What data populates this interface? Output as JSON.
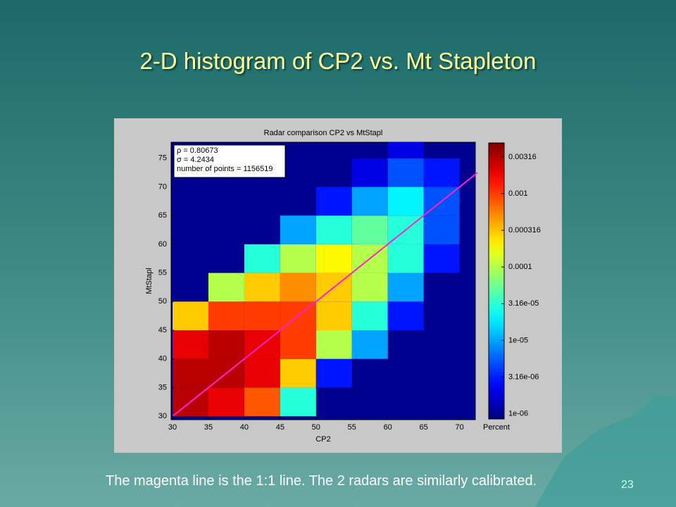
{
  "slide_title": "2-D histogram of CP2 vs. Mt Stapleton",
  "caption": "The magenta line is the 1:1 line. The 2 radars are similarly calibrated.",
  "page_number": "23",
  "chart_data": {
    "type": "heatmap",
    "title": "Radar comparison CP2 vs MtStapl",
    "xlabel": "CP2",
    "ylabel": "MtStapl",
    "annotations": [
      "ρ = 0.80673",
      "σ = 4.2434",
      "number of points = 1156519"
    ],
    "xlim": [
      29.8,
      72.2
    ],
    "ylim": [
      29.4,
      77.8
    ],
    "xticks": [
      30,
      35,
      40,
      45,
      50,
      55,
      60,
      65,
      70
    ],
    "yticks": [
      30,
      35,
      40,
      45,
      50,
      55,
      60,
      65,
      70,
      75
    ],
    "x_bins": [
      30,
      35,
      40,
      45,
      50,
      55,
      60,
      65,
      70
    ],
    "y_bins": [
      30,
      35,
      40,
      45,
      50,
      55,
      60,
      65,
      70,
      75,
      80
    ],
    "values": [
      [
        0.003,
        0.002,
        0.0008,
        3e-05,
        null,
        null,
        null,
        null
      ],
      [
        0.003,
        0.003,
        0.002,
        0.0003,
        3e-06,
        null,
        null,
        null
      ],
      [
        0.002,
        0.003,
        0.002,
        0.001,
        0.0001,
        1e-05,
        null,
        null
      ],
      [
        0.0003,
        0.001,
        0.001,
        0.001,
        0.0003,
        3e-05,
        3e-06,
        null
      ],
      [
        null,
        0.0001,
        0.0003,
        0.0005,
        0.0003,
        0.0001,
        1e-05,
        null
      ],
      [
        null,
        null,
        3e-05,
        0.0001,
        0.0002,
        0.0001,
        3e-05,
        3e-06
      ],
      [
        null,
        null,
        null,
        1e-05,
        3e-05,
        5e-05,
        3e-05,
        5e-06
      ],
      [
        null,
        null,
        null,
        null,
        3e-06,
        1e-05,
        2e-05,
        5e-06
      ],
      [
        null,
        null,
        null,
        null,
        null,
        2e-06,
        5e-06,
        3e-06
      ],
      [
        null,
        null,
        null,
        null,
        null,
        null,
        2e-06,
        null
      ]
    ],
    "colorbar": {
      "label": "Percent",
      "log": true,
      "clim": [
        8.5e-07,
        0.0049
      ],
      "ticks": [
        0.00316,
        0.001,
        0.000316,
        0.0001,
        {
          "value": 3.16e-05,
          "label": "3.16e-05"
        },
        {
          "value": 1e-05,
          "label": "1e-05"
        },
        {
          "value": 3.16e-06,
          "label": "3.16e-06"
        },
        {
          "value": 1e-06,
          "label": "1e-06"
        }
      ]
    },
    "reference_line": {
      "color": "#ff22cc",
      "x": [
        30,
        72.5
      ],
      "y": [
        30,
        72.5
      ]
    }
  }
}
